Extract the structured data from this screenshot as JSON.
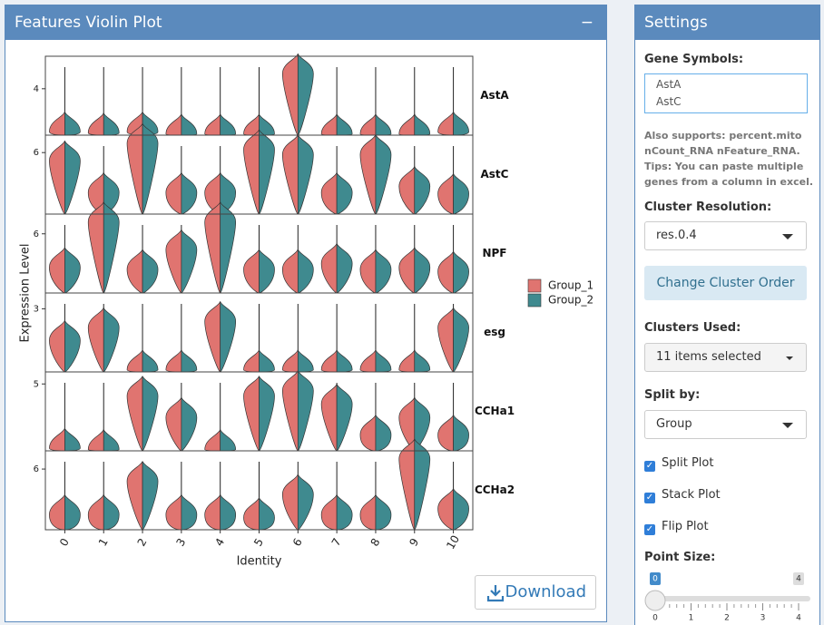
{
  "header": {
    "title": "Features Violin Plot",
    "collapse": "−"
  },
  "chart_data": {
    "type": "violin",
    "y_label": "Expression Level",
    "x_label": "Identity",
    "categories": [
      "0",
      "1",
      "2",
      "3",
      "4",
      "5",
      "6",
      "7",
      "8",
      "9",
      "10"
    ],
    "groups": [
      {
        "name": "Group_1",
        "color": "#e07470"
      },
      {
        "name": "Group_2",
        "color": "#3f8a8f"
      }
    ],
    "panels": [
      {
        "name": "AstA",
        "ylim": [
          0,
          6.8
        ],
        "yticks": [
          4
        ],
        "values": [
          [
            0.3,
            0.2,
            0.3,
            0.1,
            0.1,
            0.1,
            5.3,
            0.1,
            0.1,
            0.1,
            0.3
          ],
          [
            0.3,
            0.2,
            0.3,
            0.1,
            0.1,
            0.1,
            5.3,
            0.1,
            0.1,
            0.1,
            0.3
          ]
        ]
      },
      {
        "name": "AstC",
        "ylim": [
          0,
          7.7
        ],
        "yticks": [
          6
        ],
        "values": [
          [
            5.2,
            2.1,
            6.9,
            2.1,
            2.1,
            6.3,
            5.8,
            2.1,
            5.8,
            2.7,
            2.0
          ],
          [
            5.2,
            2.1,
            6.9,
            2.1,
            2.1,
            6.3,
            5.8,
            2.1,
            5.8,
            2.7,
            2.0
          ]
        ]
      },
      {
        "name": "NPF",
        "ylim": [
          0,
          8
        ],
        "yticks": [
          6
        ],
        "values": [
          [
            2.6,
            7.2,
            2.4,
            4.4,
            7.2,
            2.4,
            2.4,
            3.0,
            2.4,
            2.6,
            2.2
          ],
          [
            2.6,
            7.2,
            2.4,
            4.4,
            7.2,
            2.4,
            2.4,
            3.0,
            2.4,
            2.6,
            2.2
          ]
        ]
      },
      {
        "name": "esg",
        "ylim": [
          0,
          3.75
        ],
        "yticks": [
          3
        ],
        "values": [
          [
            1.5,
            2.1,
            0.1,
            0.1,
            2.4,
            0.1,
            0.1,
            0.1,
            0.1,
            0.1,
            2.1
          ],
          [
            1.5,
            2.1,
            0.1,
            0.1,
            2.4,
            0.1,
            0.1,
            0.1,
            0.1,
            0.1,
            2.1
          ]
        ]
      },
      {
        "name": "CCHa1",
        "ylim": [
          0,
          5.9
        ],
        "yticks": [
          5
        ],
        "values": [
          [
            0.2,
            0.1,
            4.1,
            2.5,
            0.1,
            4.1,
            4.5,
            3.5,
            1.2,
            2.5,
            1.2
          ],
          [
            0.2,
            0.1,
            4.1,
            2.5,
            0.1,
            4.1,
            4.5,
            3.5,
            1.2,
            2.5,
            1.2
          ]
        ]
      },
      {
        "name": "CCHa2",
        "ylim": [
          0,
          7.8
        ],
        "yticks": [
          6
        ],
        "values": [
          [
            1.5,
            1.5,
            4.8,
            1.5,
            1.5,
            1.2,
            3.5,
            1.5,
            1.5,
            7.0,
            2.1
          ],
          [
            1.5,
            1.5,
            4.8,
            1.5,
            1.5,
            1.2,
            3.5,
            1.5,
            1.5,
            7.0,
            2.1
          ]
        ]
      }
    ]
  },
  "download": "Download",
  "settings": {
    "title": "Settings",
    "gene_symbols": {
      "label": "Gene Symbols:",
      "lines": [
        "AstA",
        "AstC"
      ]
    },
    "help": [
      "Also supports: percent.mito",
      "nCount_RNA nFeature_RNA.",
      "Tips: You can paste multiple",
      "genes from a column in excel."
    ],
    "cluster_resolution": {
      "label": "Cluster Resolution:",
      "value": "res.0.4"
    },
    "order_button": "Change Cluster Order",
    "clusters_used": {
      "label": "Clusters Used:",
      "value": "11 items selected"
    },
    "split_by": {
      "label": "Split by:",
      "value": "Group"
    },
    "checkboxes": [
      {
        "label": "Split Plot",
        "checked": true
      },
      {
        "label": "Stack Plot",
        "checked": true
      },
      {
        "label": "Flip Plot",
        "checked": true
      }
    ],
    "point_size": {
      "label": "Point Size:",
      "value": 0,
      "max": 4,
      "ticks": [
        0,
        1,
        2,
        3,
        4
      ]
    }
  }
}
